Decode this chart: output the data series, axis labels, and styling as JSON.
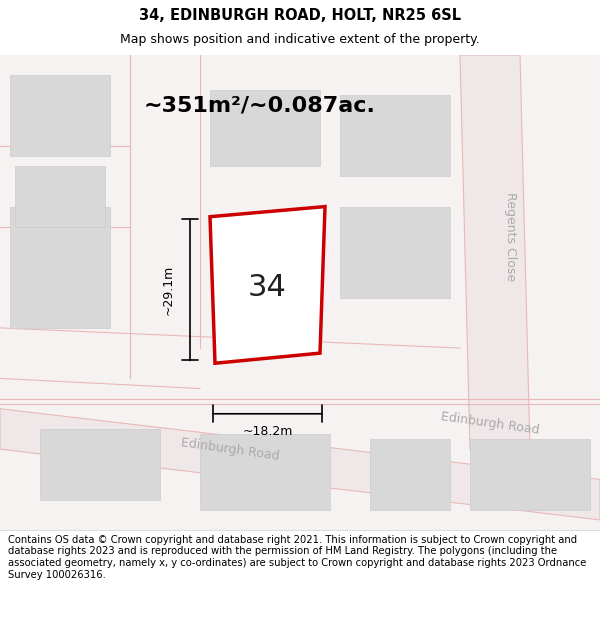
{
  "title": "34, EDINBURGH ROAD, HOLT, NR25 6SL",
  "subtitle": "Map shows position and indicative extent of the property.",
  "area_label": "~351m²/~0.087ac.",
  "plot_number": "34",
  "dim_width": "~18.2m",
  "dim_height": "~29.1m",
  "street_label_edinburgh": "Edinburgh Road",
  "street_label_regents": "Regents Close",
  "footer_text": "Contains OS data © Crown copyright and database right 2021. This information is subject to Crown copyright and database rights 2023 and is reproduced with the permission of HM Land Registry. The polygons (including the associated geometry, namely x, y co-ordinates) are subject to Crown copyright and database rights 2023 Ordnance Survey 100026316.",
  "bg_color": "#f5f0f0",
  "map_bg": "#f9f5f5",
  "plot_color": "#cc0000",
  "road_color": "#e8b8b8",
  "building_color": "#d8d8d8",
  "white": "#ffffff"
}
